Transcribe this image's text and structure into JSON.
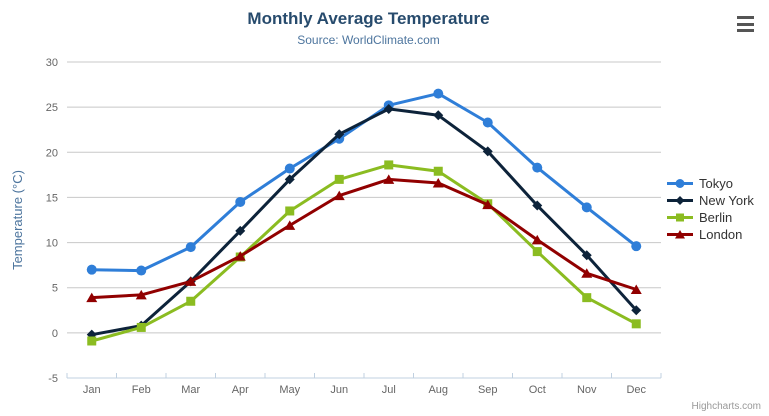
{
  "header": {
    "title": "Monthly Average Temperature",
    "subtitle": "Source: WorldClimate.com"
  },
  "toolbar": {
    "menu_icon": "hamburger-icon"
  },
  "credits": {
    "label": "Highcharts.com"
  },
  "colors": {
    "title": "#274b6d",
    "subtitle": "#4d759e",
    "axis_label": "#666666",
    "axis_title": "#4d759e",
    "axis_line": "#c0d0e0",
    "gridline": "#c8c8c8",
    "legend_text": "#333333",
    "menu_icon": "#555555",
    "credits_text": "#999999"
  },
  "chart_data": {
    "type": "line",
    "title": "Monthly Average Temperature",
    "subtitle": "Source: WorldClimate.com",
    "categories": [
      "Jan",
      "Feb",
      "Mar",
      "Apr",
      "May",
      "Jun",
      "Jul",
      "Aug",
      "Sep",
      "Oct",
      "Nov",
      "Dec"
    ],
    "xlabel": "",
    "ylabel": "Temperature (°C)",
    "ylim": [
      -5,
      30
    ],
    "ytick_interval": 5,
    "yticks": [
      -5,
      0,
      5,
      10,
      15,
      20,
      25,
      30
    ],
    "grid": true,
    "legend_position": "right",
    "series": [
      {
        "name": "Tokyo",
        "color": "#2f7ed8",
        "marker": "circle",
        "values": [
          7.0,
          6.9,
          9.5,
          14.5,
          18.2,
          21.5,
          25.2,
          26.5,
          23.3,
          18.3,
          13.9,
          9.6
        ]
      },
      {
        "name": "New York",
        "color": "#0d233a",
        "marker": "diamond",
        "values": [
          -0.2,
          0.8,
          5.7,
          11.3,
          17.0,
          22.0,
          24.8,
          24.1,
          20.1,
          14.1,
          8.6,
          2.5
        ]
      },
      {
        "name": "Berlin",
        "color": "#8bbc21",
        "marker": "square",
        "values": [
          -0.9,
          0.6,
          3.5,
          8.4,
          13.5,
          17.0,
          18.6,
          17.9,
          14.3,
          9.0,
          3.9,
          1.0
        ]
      },
      {
        "name": "London",
        "color": "#910000",
        "marker": "triangle",
        "values": [
          3.9,
          4.2,
          5.7,
          8.5,
          11.9,
          15.2,
          17.0,
          16.6,
          14.2,
          10.3,
          6.6,
          4.8
        ]
      }
    ]
  }
}
